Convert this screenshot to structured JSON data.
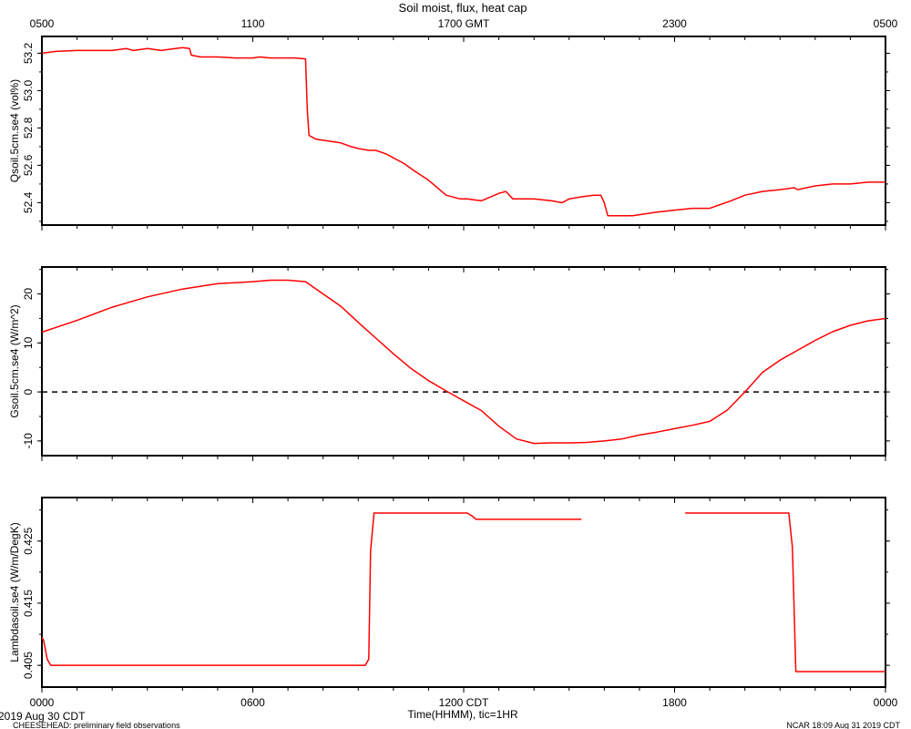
{
  "figure": {
    "title": "Soil moist, flux, heat cap",
    "footer_left_date": "2019 Aug 30 CDT",
    "footer_left_note": "CHEESEHEAD: preliminary field observations",
    "footer_right": "NCAR 18:09 Aug 31 2019 CDT",
    "line_color": "#ff0000",
    "zero_line_color": "#000000",
    "x_axis": {
      "range_hours": [
        0,
        24
      ],
      "top_tick_labels": [
        "0500",
        "1100",
        "1700 GMT",
        "2300",
        "0500"
      ],
      "bottom_tick_labels": [
        "0000",
        "0600",
        "1200 CDT",
        "1800",
        "0000"
      ],
      "label": "Time(HHMM), tic=1HR"
    }
  },
  "chart_data": [
    {
      "type": "line",
      "ylabel": "Qsoil.5cm.se4 (vol%)",
      "ylim": [
        52.28,
        53.29
      ],
      "yticks": [
        52.4,
        52.6,
        52.8,
        53.0,
        53.2
      ],
      "ytick_labels": [
        "52.4",
        "52.6",
        "52.8",
        "53.0",
        "53.2"
      ],
      "series": [
        {
          "x": [
            0,
            0.4,
            1.0,
            2.0,
            2.4,
            2.6,
            3.0,
            3.4,
            3.6,
            4.0,
            4.2,
            4.25,
            4.5,
            5.0,
            5.5,
            6.0,
            6.2,
            6.5,
            7.0,
            7.2,
            7.5,
            7.55,
            7.6,
            7.8,
            8.5,
            8.8,
            9.0,
            9.3,
            9.5,
            9.8,
            10.0,
            10.3,
            10.6,
            11.0,
            11.5,
            11.9,
            12.1,
            12.5,
            13.0,
            13.2,
            13.4,
            13.7,
            14.0,
            14.5,
            14.8,
            15.0,
            15.3,
            15.7,
            15.9,
            16.0,
            16.1,
            16.3,
            16.8,
            17.5,
            18.0,
            18.5,
            19.0,
            19.3,
            19.6,
            20.0,
            20.5,
            21.0,
            21.4,
            21.5,
            22.0,
            22.5,
            23.0,
            23.5,
            24.0
          ],
          "values": [
            53.2,
            53.21,
            53.215,
            53.215,
            53.225,
            53.215,
            53.225,
            53.215,
            53.22,
            53.23,
            53.225,
            53.19,
            53.18,
            53.18,
            53.175,
            53.175,
            53.18,
            53.175,
            53.175,
            53.175,
            53.17,
            52.9,
            52.76,
            52.74,
            52.72,
            52.7,
            52.69,
            52.68,
            52.68,
            52.66,
            52.64,
            52.61,
            52.57,
            52.52,
            52.44,
            52.42,
            52.42,
            52.41,
            52.45,
            52.46,
            52.42,
            52.42,
            52.42,
            52.41,
            52.4,
            52.42,
            52.43,
            52.44,
            52.44,
            52.4,
            52.33,
            52.33,
            52.33,
            52.35,
            52.36,
            52.37,
            52.37,
            52.39,
            52.41,
            52.44,
            52.46,
            52.47,
            52.48,
            52.47,
            52.49,
            52.5,
            52.5,
            52.51,
            52.51
          ]
        }
      ]
    },
    {
      "type": "line",
      "ylabel": "Gsoil.5cm.se4 (W/m^2)",
      "ylim": [
        -13.0,
        25.5
      ],
      "yticks": [
        -10,
        0,
        10,
        20
      ],
      "ytick_labels": [
        "-10",
        "0",
        "10",
        "20"
      ],
      "zero_line": true,
      "series": [
        {
          "x": [
            0,
            1,
            2,
            3,
            4,
            5,
            6,
            6.5,
            7,
            7.5,
            8,
            8.5,
            9,
            9.5,
            10,
            10.5,
            11,
            11.5,
            12,
            12.5,
            13,
            13.5,
            14,
            14.5,
            15,
            15.5,
            16,
            16.5,
            17,
            17.5,
            18,
            18.5,
            19,
            19.5,
            20,
            20.5,
            21,
            21.5,
            22,
            22.5,
            23,
            23.5,
            24
          ],
          "values": [
            12.2,
            14.6,
            17.3,
            19.4,
            21.0,
            22.1,
            22.5,
            22.8,
            22.8,
            22.5,
            20.0,
            17.5,
            14.2,
            11.0,
            7.8,
            4.8,
            2.3,
            0.2,
            -1.8,
            -3.8,
            -7.0,
            -9.6,
            -10.5,
            -10.4,
            -10.4,
            -10.3,
            -10.0,
            -9.6,
            -8.8,
            -8.2,
            -7.5,
            -6.8,
            -6.0,
            -3.7,
            0.0,
            4.0,
            6.5,
            8.5,
            10.5,
            12.3,
            13.6,
            14.5,
            15.0
          ]
        }
      ]
    },
    {
      "type": "line",
      "ylabel": "Lambdasoil.se4 (W/m/DegK)",
      "ylim": [
        0.4015,
        0.432
      ],
      "yticks": [
        0.405,
        0.415,
        0.425
      ],
      "ytick_labels": [
        "0.405",
        "0.415",
        "0.425"
      ],
      "series": [
        {
          "x": [
            0,
            0.05,
            0.15,
            0.25,
            9.2,
            9.3,
            9.35,
            9.45,
            12.1,
            12.25,
            12.35,
            15.35
          ],
          "values": [
            0.4095,
            0.409,
            0.406,
            0.405,
            0.405,
            0.406,
            0.4235,
            0.4295,
            0.4295,
            0.429,
            0.4285,
            0.4285
          ]
        },
        {
          "x": [
            18.3,
            21.25,
            21.35,
            21.45,
            24.0
          ],
          "values": [
            0.4295,
            0.4295,
            0.424,
            0.404,
            0.404
          ]
        }
      ]
    }
  ]
}
